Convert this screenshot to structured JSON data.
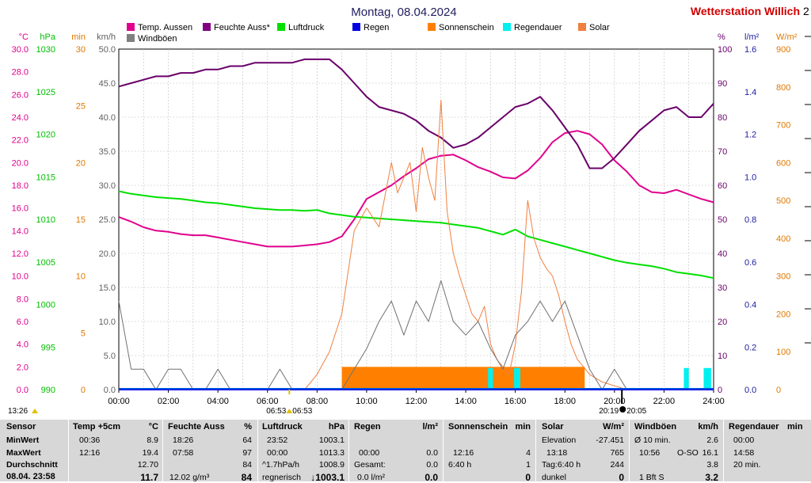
{
  "chart_data": {
    "type": "line",
    "title": "Montag, 08.04.2024",
    "station": "Wetterstation Willich",
    "station_suffix": "2",
    "x_ticks": [
      "00:00",
      "02:00",
      "04:00",
      "06:00",
      "08:00",
      "10:00",
      "12:00",
      "14:00",
      "16:00",
      "18:00",
      "20:00",
      "22:00",
      "24:00"
    ],
    "xlim": [
      0,
      24
    ],
    "axes": {
      "temp": {
        "unit": "°C",
        "ylim": [
          0,
          30
        ],
        "ticks": [
          "0.0",
          "2.0",
          "4.0",
          "6.0",
          "8.0",
          "10.0",
          "12.0",
          "14.0",
          "16.0",
          "18.0",
          "20.0",
          "22.0",
          "24.0",
          "26.0",
          "28.0",
          "30.0"
        ],
        "color": "#e0008c"
      },
      "pressure": {
        "unit": "hPa",
        "ylim": [
          990,
          1030
        ],
        "ticks": [
          "990",
          "995",
          "1000",
          "1005",
          "1010",
          "1015",
          "1020",
          "1025",
          "1030"
        ],
        "color": "#00c000"
      },
      "minutes": {
        "unit": "min",
        "ylim": [
          0,
          30
        ],
        "ticks": [
          "0",
          "5",
          "10",
          "15",
          "20",
          "25",
          "30"
        ],
        "color": "#e07800"
      },
      "wind": {
        "unit": "km/h",
        "ylim": [
          0,
          50
        ],
        "ticks": [
          "0.0",
          "5.0",
          "10.0",
          "15.0",
          "20.0",
          "25.0",
          "30.0",
          "35.0",
          "40.0",
          "45.0",
          "50.0"
        ],
        "color": "#606060"
      },
      "humidity": {
        "unit": "%",
        "ylim": [
          0,
          100
        ],
        "ticks": [
          "0",
          "10",
          "20",
          "30",
          "40",
          "50",
          "60",
          "70",
          "80",
          "90",
          "100"
        ],
        "color": "#6a006a"
      },
      "rain": {
        "unit": "l/m²",
        "ylim": [
          0,
          1.6
        ],
        "ticks": [
          "0.0",
          "0.2",
          "0.4",
          "0.6",
          "0.8",
          "1.0",
          "1.2",
          "1.4",
          "1.6"
        ],
        "color": "#2020a0"
      },
      "solar": {
        "unit": "W/m²",
        "ylim": [
          0,
          900
        ],
        "ticks": [
          "0",
          "100",
          "200",
          "300",
          "400",
          "500",
          "600",
          "700",
          "800",
          "900"
        ],
        "color": "#e07800"
      }
    },
    "legend": [
      {
        "name": "Temp. Aussen",
        "color": "#e0008c"
      },
      {
        "name": "Feuchte Auss*",
        "color": "#800080"
      },
      {
        "name": "Luftdruck",
        "color": "#00e000"
      },
      {
        "name": "Regen",
        "color": "#0000e0"
      },
      {
        "name": "Sonnenschein",
        "color": "#ff8000"
      },
      {
        "name": "Regendauer",
        "color": "#00f0f0"
      },
      {
        "name": "Solar",
        "color": "#f08040"
      },
      {
        "name": "Windböen",
        "color": "#808080"
      }
    ],
    "series": [
      {
        "name": "Temp. Aussen",
        "axis": "temp",
        "color": "#e0008c",
        "x": [
          0,
          0.5,
          1,
          1.5,
          2,
          2.5,
          3,
          3.5,
          4,
          4.5,
          5,
          5.5,
          6,
          6.5,
          7,
          7.5,
          8,
          8.5,
          9,
          9.5,
          10,
          10.5,
          11,
          11.5,
          12,
          12.5,
          13,
          13.5,
          14,
          14.5,
          15,
          15.5,
          16,
          16.5,
          17,
          17.5,
          18,
          18.5,
          19,
          19.5,
          20,
          20.5,
          21,
          21.5,
          22,
          22.5,
          23,
          23.5,
          24
        ],
        "y": [
          15.2,
          14.8,
          14.3,
          14.0,
          13.9,
          13.7,
          13.6,
          13.6,
          13.4,
          13.2,
          13.0,
          12.8,
          12.6,
          12.6,
          12.6,
          12.7,
          12.8,
          13.0,
          13.5,
          15.0,
          16.8,
          17.4,
          18.0,
          18.8,
          19.5,
          20.3,
          20.6,
          20.7,
          20.2,
          19.6,
          19.2,
          18.7,
          18.6,
          19.3,
          20.4,
          21.8,
          22.6,
          22.8,
          22.5,
          21.6,
          20.2,
          19.2,
          18.0,
          17.4,
          17.3,
          17.6,
          17.2,
          16.8,
          16.5
        ]
      },
      {
        "name": "Feuchte Auss*",
        "axis": "humidity",
        "color": "#6a006a",
        "x": [
          0,
          0.5,
          1,
          1.5,
          2,
          2.5,
          3,
          3.5,
          4,
          4.5,
          5,
          5.5,
          6,
          6.5,
          7,
          7.5,
          8,
          8.5,
          9,
          9.5,
          10,
          10.5,
          11,
          11.5,
          12,
          12.5,
          13,
          13.5,
          14,
          14.5,
          15,
          15.5,
          16,
          16.5,
          17,
          17.5,
          18,
          18.5,
          19,
          19.5,
          20,
          20.5,
          21,
          21.5,
          22,
          22.5,
          23,
          23.5,
          24
        ],
        "y": [
          89,
          90,
          91,
          92,
          92,
          93,
          93,
          94,
          94,
          95,
          95,
          96,
          96,
          96,
          96,
          97,
          97,
          97,
          94,
          90,
          86,
          83,
          82,
          81,
          79,
          76,
          74,
          71,
          72,
          74,
          77,
          80,
          83,
          84,
          86,
          82,
          77,
          72,
          65,
          65,
          68,
          72,
          76,
          79,
          82,
          83,
          80,
          80,
          84
        ]
      },
      {
        "name": "Luftdruck",
        "axis": "pressure",
        "color": "#00e000",
        "x": [
          0,
          0.5,
          1,
          1.5,
          2,
          2.5,
          3,
          3.5,
          4,
          4.5,
          5,
          5.5,
          6,
          6.5,
          7,
          7.5,
          8,
          8.5,
          9,
          9.5,
          10,
          10.5,
          11,
          11.5,
          12,
          12.5,
          13,
          13.5,
          14,
          14.5,
          15,
          15.5,
          16,
          16.5,
          17,
          17.5,
          18,
          18.5,
          19,
          19.5,
          20,
          20.5,
          21,
          21.5,
          22,
          22.5,
          23,
          23.5,
          24
        ],
        "y": [
          1013.3,
          1013.0,
          1012.8,
          1012.6,
          1012.5,
          1012.4,
          1012.2,
          1012.0,
          1011.9,
          1011.7,
          1011.5,
          1011.3,
          1011.2,
          1011.1,
          1011.1,
          1011.0,
          1011.1,
          1010.7,
          1010.5,
          1010.3,
          1010.2,
          1010.1,
          1010.0,
          1009.9,
          1009.8,
          1009.7,
          1009.6,
          1009.4,
          1009.2,
          1009.0,
          1008.6,
          1008.2,
          1008.8,
          1008.0,
          1007.6,
          1007.2,
          1006.8,
          1006.4,
          1006.0,
          1005.6,
          1005.2,
          1004.9,
          1004.7,
          1004.5,
          1004.2,
          1003.8,
          1003.6,
          1003.4,
          1003.1
        ]
      },
      {
        "name": "Solar",
        "axis": "solar",
        "color": "#f08040",
        "x": [
          7.5,
          8,
          8.5,
          9,
          9.5,
          10,
          10.5,
          11,
          11.25,
          11.5,
          11.75,
          12,
          12.25,
          12.5,
          12.75,
          13,
          13.25,
          13.5,
          13.75,
          14,
          14.25,
          14.5,
          14.75,
          15,
          15.25,
          15.5,
          15.75,
          16,
          16.25,
          16.5,
          16.75,
          17,
          17.25,
          17.5,
          17.75,
          18,
          18.25,
          18.5,
          18.75,
          19,
          19.5,
          20,
          20.5
        ],
        "y": [
          0,
          40,
          100,
          200,
          420,
          480,
          430,
          600,
          520,
          560,
          600,
          470,
          640,
          560,
          500,
          765,
          470,
          360,
          300,
          250,
          200,
          180,
          220,
          120,
          80,
          60,
          40,
          120,
          260,
          500,
          400,
          350,
          320,
          300,
          250,
          180,
          120,
          80,
          60,
          40,
          20,
          10,
          0
        ]
      },
      {
        "name": "Windböen",
        "axis": "wind",
        "color": "#606060",
        "x": [
          0,
          0.5,
          1,
          1.5,
          2,
          2.5,
          3,
          3.5,
          4,
          4.5,
          5,
          5.5,
          6,
          6.5,
          7,
          7.5,
          8,
          8.5,
          9,
          9.5,
          10,
          10.5,
          11,
          11.5,
          12,
          12.5,
          13,
          13.5,
          14,
          14.5,
          15,
          15.5,
          16,
          16.5,
          17,
          17.5,
          18,
          18.5,
          19,
          19.5,
          20,
          20.5,
          21,
          21.5,
          22,
          22.5,
          23,
          23.5,
          24
        ],
        "y": [
          13,
          3,
          3,
          0,
          3,
          3,
          0,
          0,
          3,
          0,
          0,
          0,
          0,
          3,
          0,
          0,
          0,
          0,
          0,
          3,
          6,
          10,
          13,
          8,
          13,
          10,
          16,
          10,
          8,
          10,
          6,
          3,
          8,
          10,
          13,
          10,
          13,
          8,
          3,
          0,
          3,
          0,
          0,
          0,
          0,
          0,
          0,
          0,
          0
        ]
      },
      {
        "name": "Regen",
        "axis": "rain",
        "color": "#0000e0",
        "x": [
          0,
          24
        ],
        "y": [
          0,
          0
        ]
      }
    ],
    "sunshine_bars": [
      [
        9.0,
        18.8
      ]
    ],
    "rain_duration_bars": [
      [
        14.9,
        15.1
      ],
      [
        15.95,
        16.2
      ],
      [
        22.8,
        23.0
      ],
      [
        23.6,
        23.9
      ]
    ],
    "markers": {
      "sunrise": "06:53",
      "sunrise2": "06:53",
      "sunset": "20:19",
      "sunset2": "20:05"
    },
    "left_time": "13:26"
  },
  "table": {
    "sensor": {
      "h": "Sensor",
      "rows": [
        "MinWert",
        "MaxWert",
        "Durchschnitt",
        "08.04. 23:58"
      ]
    },
    "temp": {
      "h": "Temp +5cm",
      "unit": "°C",
      "r1t": "00:36",
      "r1v": "8.9",
      "r2t": "12:16",
      "r2v": "19.4",
      "r3v": "12.70",
      "r4v": "11.7"
    },
    "feuchte": {
      "h": "Feuchte Auss",
      "unit": "%",
      "r1t": "18:26",
      "r1v": "64",
      "r2t": "07:58",
      "r2v": "97",
      "r3v": "84",
      "r4t": "12.02 g/m³",
      "r4v": "84"
    },
    "luft": {
      "h": "Luftdruck",
      "unit": "hPa",
      "r1t": "23:52",
      "r1v": "1003.1",
      "r2t": "00:00",
      "r2v": "1013.3",
      "r3t": "^1.7hPa/h",
      "r3v": "1008.9",
      "r4t": "regnerisch",
      "r4v": "↓1003.1"
    },
    "regen": {
      "h": "Regen",
      "unit": "l/m²",
      "r2t": "00:00",
      "r2v": "0.0",
      "r3t": "Gesamt:",
      "r3v": "0.0",
      "r4t": "0.0 l/m²",
      "r4v": "0.0"
    },
    "sonne": {
      "h": "Sonnenschein",
      "unit": "min",
      "r2t": "12:16",
      "r2v": "4",
      "r3t": "6:40 h",
      "r3v": "1",
      "r4v": "0"
    },
    "solar": {
      "h": "Solar",
      "unit": "W/m²",
      "r1t": "Elevation",
      "r1v": "-27.451",
      "r2t": "13:18",
      "r2v": "765",
      "r3t": "Tag:6:40 h",
      "r3v": "244",
      "r4t": "dunkel",
      "r4v": "0"
    },
    "wind": {
      "h": "Windböen",
      "unit": "km/h",
      "r1t": "Ø 10 min.",
      "r1v": "2.6",
      "r2t": "10:56",
      "r2m": "O-SO",
      "r2v": "16.1",
      "r3v": "3.8",
      "r4t": "1 Bft S",
      "r4v": "3.2"
    },
    "regdauer": {
      "h": "Regendauer",
      "unit": "min",
      "r1t": "00:00",
      "r2t": "14:58",
      "r3t": "20 min."
    }
  }
}
